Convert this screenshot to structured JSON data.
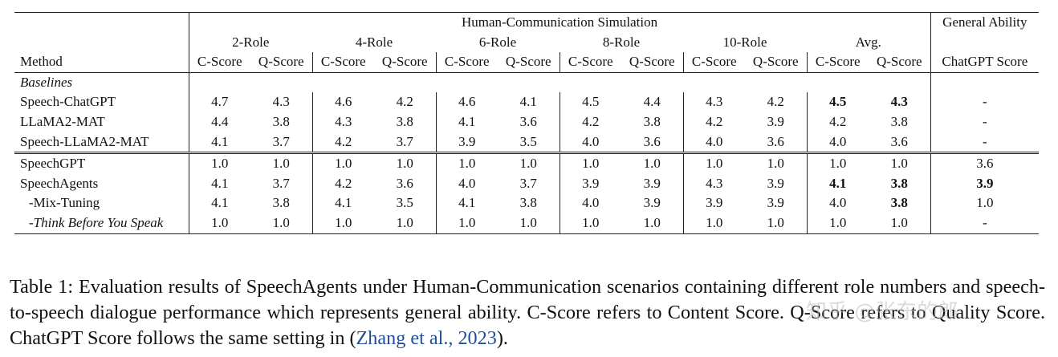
{
  "table": {
    "group_header": "Human-Communication Simulation",
    "general_header": "General Ability",
    "method_header": "Method",
    "role_groups": [
      "2-Role",
      "4-Role",
      "6-Role",
      "8-Role",
      "10-Role",
      "Avg."
    ],
    "c_score": "C-Score",
    "q_score": "Q-Score",
    "chatgpt_header": "ChatGPT Score",
    "section_baselines": "Baselines",
    "rows_baselines": [
      {
        "method": "Speech-ChatGPT",
        "cells": [
          "4.7",
          "4.3",
          "4.6",
          "4.2",
          "4.6",
          "4.1",
          "4.5",
          "4.4",
          "4.3",
          "4.2",
          "4.5",
          "4.3",
          "-"
        ]
      },
      {
        "method": "LLaMA2-MAT",
        "cells": [
          "4.4",
          "3.8",
          "4.3",
          "3.8",
          "4.1",
          "3.6",
          "4.2",
          "3.8",
          "4.2",
          "3.9",
          "4.2",
          "3.8",
          "-"
        ]
      },
      {
        "method": "Speech-LLaMA2-MAT",
        "cells": [
          "4.1",
          "3.7",
          "4.2",
          "3.7",
          "3.9",
          "3.5",
          "4.0",
          "3.6",
          "4.0",
          "3.6",
          "4.0",
          "3.6",
          "-"
        ]
      }
    ],
    "rows_ours": [
      {
        "method": "SpeechGPT",
        "cells": [
          "1.0",
          "1.0",
          "1.0",
          "1.0",
          "1.0",
          "1.0",
          "1.0",
          "1.0",
          "1.0",
          "1.0",
          "1.0",
          "1.0",
          "3.6"
        ]
      },
      {
        "method": "SpeechAgents",
        "cells": [
          "4.1",
          "3.7",
          "4.2",
          "3.6",
          "4.0",
          "3.7",
          "3.9",
          "3.9",
          "4.3",
          "3.9",
          "4.1",
          "3.8",
          "3.9"
        ]
      },
      {
        "method": "-Mix-Tuning",
        "cells": [
          "4.1",
          "3.8",
          "4.1",
          "3.5",
          "4.1",
          "3.8",
          "4.0",
          "3.9",
          "3.9",
          "3.9",
          "4.0",
          "3.8",
          "1.0"
        ]
      },
      {
        "method": "-Think Before You Speak",
        "cells": [
          "1.0",
          "1.0",
          "1.0",
          "1.0",
          "1.0",
          "1.0",
          "1.0",
          "1.0",
          "1.0",
          "1.0",
          "1.0",
          "1.0",
          "-"
        ]
      }
    ]
  },
  "caption": {
    "text": "Table 1: Evaluation results of SpeechAgents under Human-Communication scenarios containing different role numbers and speech-to-speech dialogue performance which represents general ability. C-Score refers to Content Score. Q-Score refers to Quality Score. ChatGPT Score follows the same setting in ",
    "cite": "Zhang et al., 2023",
    "end": ")."
  },
  "watermark": "知乎 @张东的郎"
}
